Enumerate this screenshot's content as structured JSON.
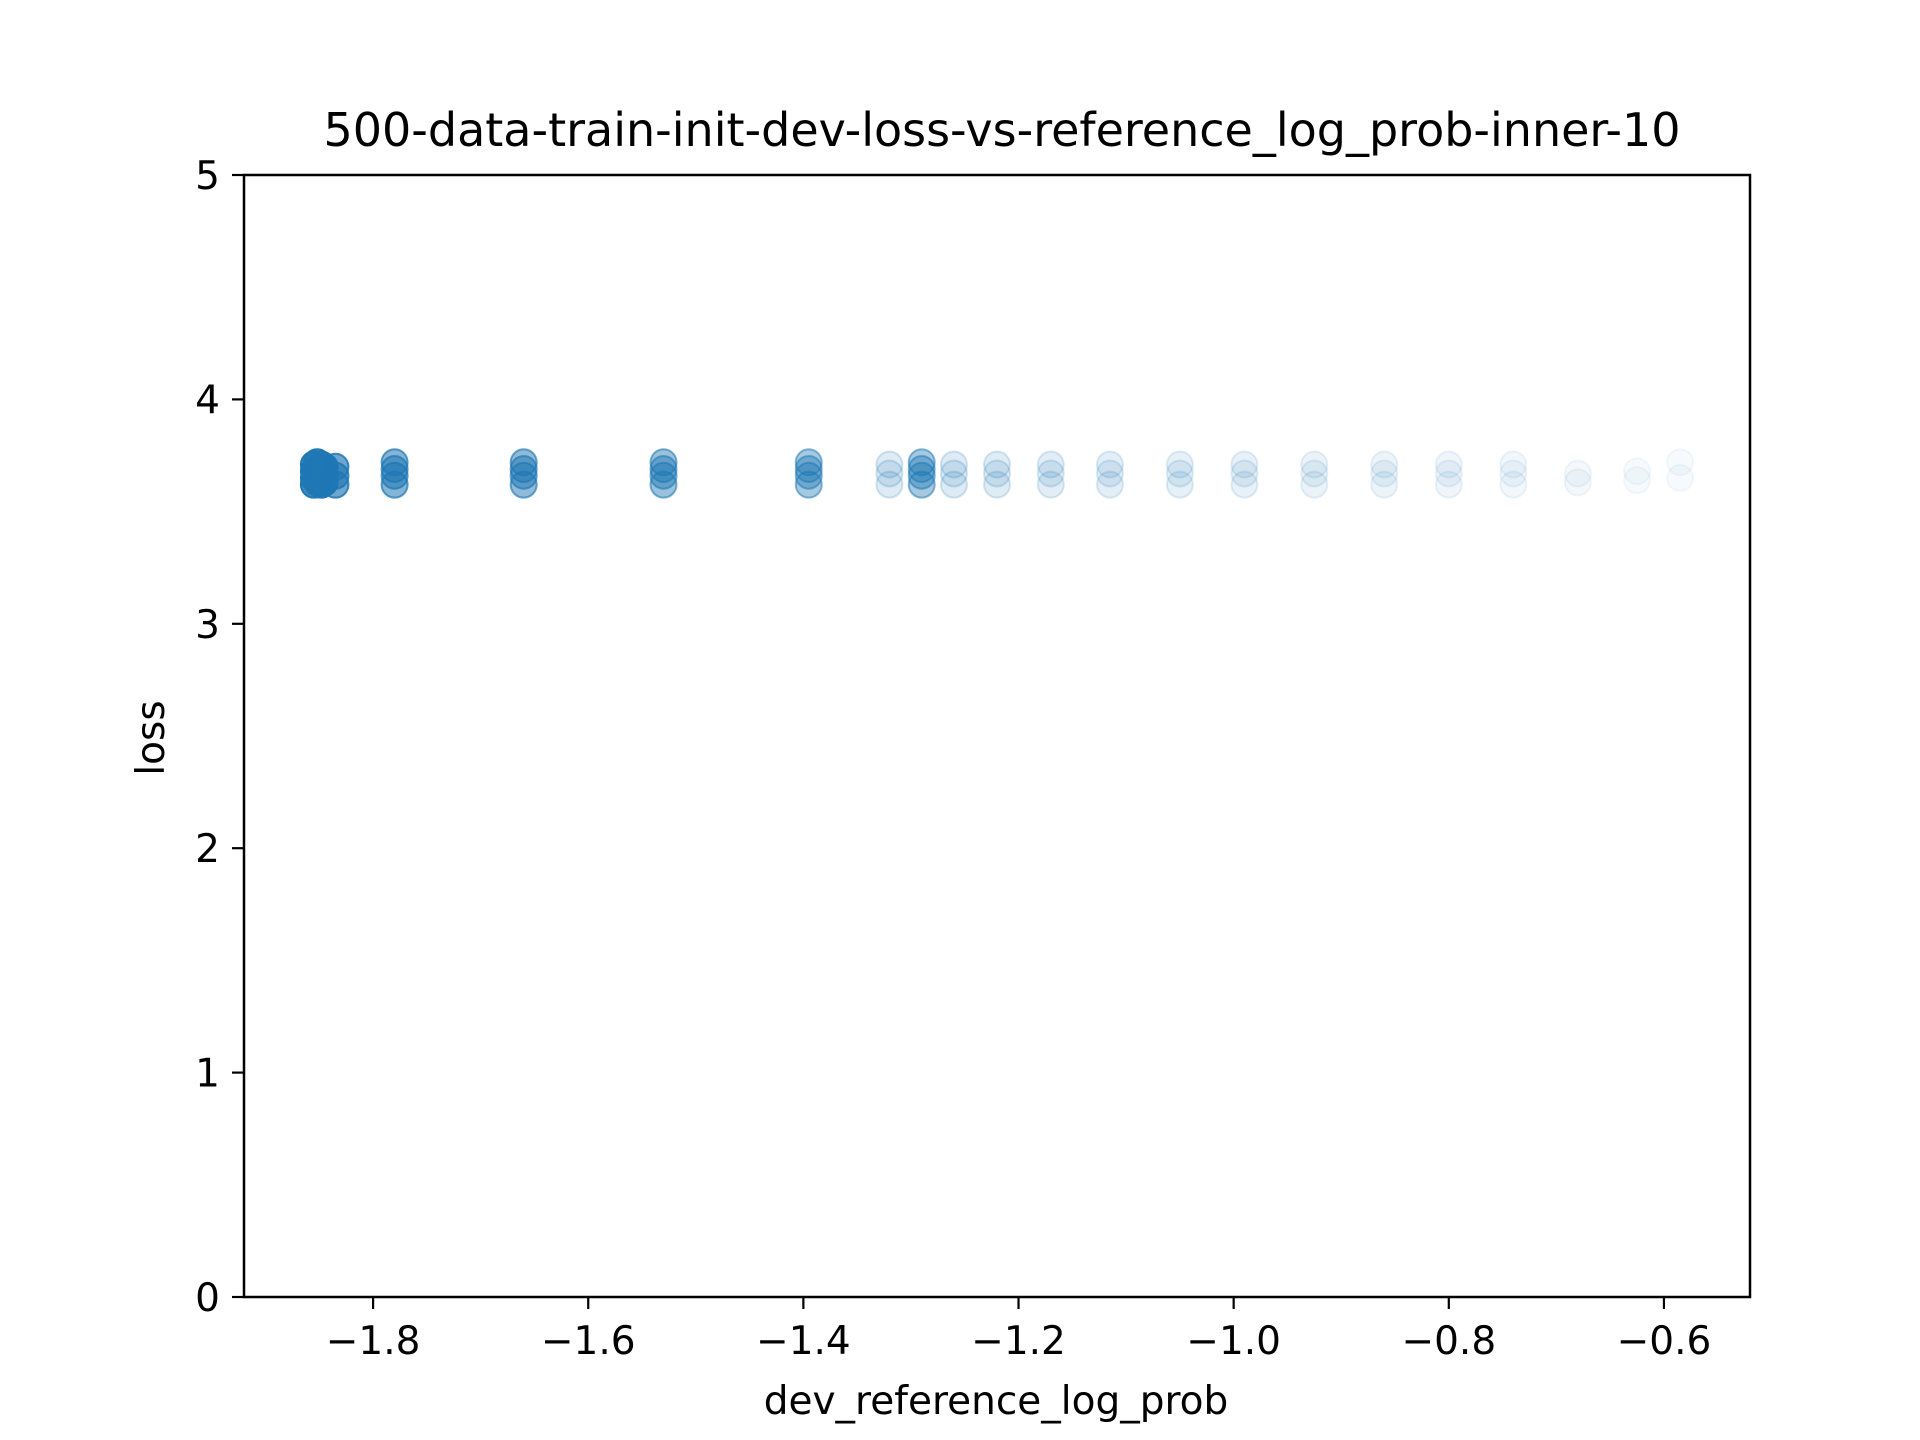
{
  "chart_data": {
    "type": "scatter",
    "title": "500-data-train-init-dev-loss-vs-reference_log_prob-inner-10",
    "xlabel": "dev_reference_log_prob",
    "ylabel": "loss",
    "xlim": [
      -1.92,
      -0.52
    ],
    "ylim": [
      0,
      5
    ],
    "xticks": [
      -1.8,
      -1.6,
      -1.4,
      -1.2,
      -1.0,
      -0.8,
      -0.6
    ],
    "xtick_labels": [
      "−1.8",
      "−1.6",
      "−1.4",
      "−1.2",
      "−1.0",
      "−0.8",
      "−0.6"
    ],
    "yticks": [
      0,
      1,
      2,
      3,
      4,
      5
    ],
    "ytick_labels": [
      "0",
      "1",
      "2",
      "3",
      "4",
      "5"
    ],
    "grid": false,
    "color": "#1f77b4",
    "point_columns": [
      {
        "x": -1.855,
        "y": [
          3.62,
          3.65,
          3.68,
          3.71
        ],
        "opacity": 0.85
      },
      {
        "x": -1.852,
        "y": [
          3.63,
          3.66,
          3.69,
          3.72
        ],
        "opacity": 0.85
      },
      {
        "x": -1.848,
        "y": [
          3.62,
          3.65,
          3.68,
          3.71
        ],
        "opacity": 0.85
      },
      {
        "x": -1.845,
        "y": [
          3.63,
          3.67,
          3.7
        ],
        "opacity": 0.8
      },
      {
        "x": -1.835,
        "y": [
          3.62,
          3.66,
          3.7
        ],
        "opacity": 0.65
      },
      {
        "x": -1.78,
        "y": [
          3.62,
          3.66,
          3.69,
          3.72
        ],
        "opacity": 0.55
      },
      {
        "x": -1.66,
        "y": [
          3.62,
          3.66,
          3.69,
          3.72
        ],
        "opacity": 0.5
      },
      {
        "x": -1.53,
        "y": [
          3.62,
          3.66,
          3.69,
          3.72
        ],
        "opacity": 0.45
      },
      {
        "x": -1.395,
        "y": [
          3.62,
          3.66,
          3.69,
          3.72
        ],
        "opacity": 0.4
      },
      {
        "x": -1.32,
        "y": [
          3.62,
          3.67,
          3.71
        ],
        "opacity": 0.15
      },
      {
        "x": -1.29,
        "y": [
          3.62,
          3.66,
          3.69,
          3.72
        ],
        "opacity": 0.4
      },
      {
        "x": -1.26,
        "y": [
          3.62,
          3.67,
          3.71
        ],
        "opacity": 0.15
      },
      {
        "x": -1.22,
        "y": [
          3.62,
          3.67,
          3.71
        ],
        "opacity": 0.14
      },
      {
        "x": -1.17,
        "y": [
          3.62,
          3.67,
          3.71
        ],
        "opacity": 0.13
      },
      {
        "x": -1.115,
        "y": [
          3.62,
          3.67,
          3.71
        ],
        "opacity": 0.12
      },
      {
        "x": -1.05,
        "y": [
          3.62,
          3.67,
          3.71
        ],
        "opacity": 0.11
      },
      {
        "x": -0.99,
        "y": [
          3.62,
          3.67,
          3.71
        ],
        "opacity": 0.1
      },
      {
        "x": -0.925,
        "y": [
          3.62,
          3.67,
          3.71
        ],
        "opacity": 0.09
      },
      {
        "x": -0.86,
        "y": [
          3.62,
          3.67,
          3.71
        ],
        "opacity": 0.08
      },
      {
        "x": -0.8,
        "y": [
          3.62,
          3.67,
          3.71
        ],
        "opacity": 0.07
      },
      {
        "x": -0.74,
        "y": [
          3.62,
          3.67,
          3.71
        ],
        "opacity": 0.06
      },
      {
        "x": -0.68,
        "y": [
          3.63,
          3.67
        ],
        "opacity": 0.05
      },
      {
        "x": -0.625,
        "y": [
          3.64,
          3.68
        ],
        "opacity": 0.04
      },
      {
        "x": -0.585,
        "y": [
          3.65,
          3.72
        ],
        "opacity": 0.04
      }
    ]
  }
}
